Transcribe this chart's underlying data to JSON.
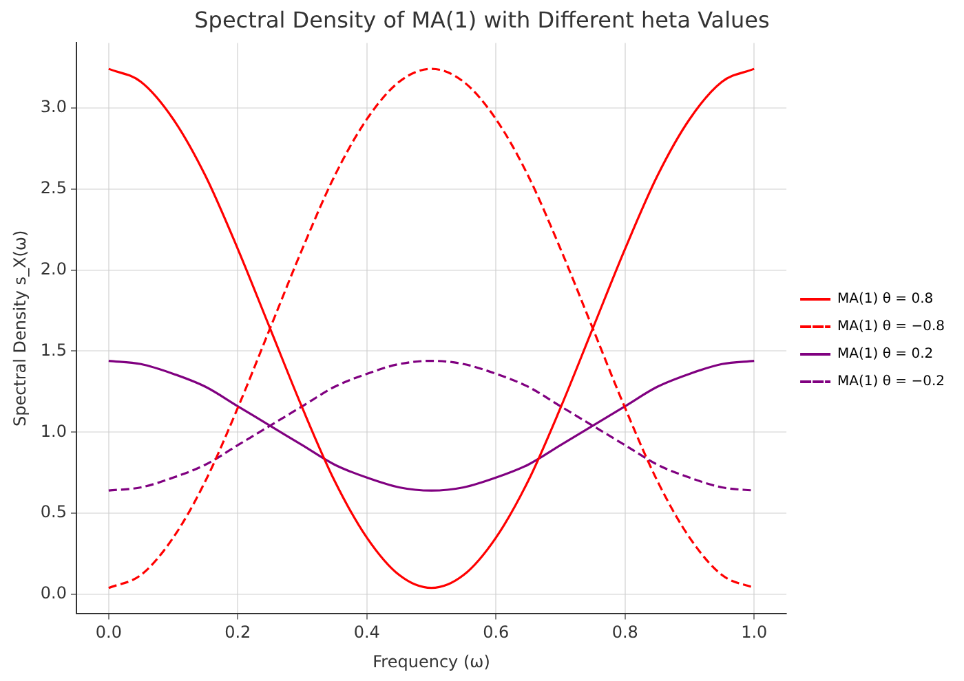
{
  "chart_data": {
    "type": "line",
    "title": "Spectral Density of MA(1) with Different heta Values",
    "xlabel": "Frequency (ω)",
    "ylabel": "Spectral Density s_X(ω)",
    "x": [
      0,
      0.05,
      0.1,
      0.15,
      0.2,
      0.25,
      0.3,
      0.35,
      0.4,
      0.45,
      0.5,
      0.55,
      0.6,
      0.65,
      0.7,
      0.75,
      0.8,
      0.85,
      0.9,
      0.95,
      1
    ],
    "series": [
      {
        "name": "MA(1) θ = 0.8",
        "color": "#ff0000",
        "line_style": "solid",
        "values": [
          3.24,
          3.16,
          2.93,
          2.58,
          2.13,
          1.64,
          1.15,
          0.7,
          0.35,
          0.12,
          0.04,
          0.12,
          0.35,
          0.7,
          1.15,
          1.64,
          2.13,
          2.58,
          2.93,
          3.16,
          3.24
        ]
      },
      {
        "name": "MA(1) θ = −0.8",
        "color": "#ff0000",
        "line_style": "dashed",
        "values": [
          0.04,
          0.12,
          0.35,
          0.7,
          1.15,
          1.64,
          2.13,
          2.58,
          2.93,
          3.16,
          3.24,
          3.16,
          2.93,
          2.58,
          2.13,
          1.64,
          1.15,
          0.7,
          0.35,
          0.12,
          0.04
        ]
      },
      {
        "name": "MA(1) θ = 0.2",
        "color": "#800080",
        "line_style": "solid",
        "values": [
          1.44,
          1.42,
          1.36,
          1.28,
          1.16,
          1.04,
          0.92,
          0.8,
          0.72,
          0.66,
          0.64,
          0.66,
          0.72,
          0.8,
          0.92,
          1.04,
          1.16,
          1.28,
          1.36,
          1.42,
          1.44
        ]
      },
      {
        "name": "MA(1) θ = −0.2",
        "color": "#800080",
        "line_style": "dashed",
        "values": [
          0.64,
          0.66,
          0.72,
          0.8,
          0.92,
          1.04,
          1.16,
          1.28,
          1.36,
          1.42,
          1.44,
          1.42,
          1.36,
          1.28,
          1.16,
          1.04,
          0.92,
          0.8,
          0.72,
          0.66,
          0.64
        ]
      }
    ],
    "xlim": [
      -0.05,
      1.05
    ],
    "xticks": [
      {
        "value": 0,
        "label": "0.0"
      },
      0.2,
      0.4,
      0.6,
      0.8,
      {
        "value": 1,
        "label": "1.0"
      }
    ],
    "ylim": [
      -0.12,
      3.4
    ],
    "yticks": [
      {
        "value": 0,
        "label": "0.0"
      },
      0.5,
      {
        "value": 1,
        "label": "1.0"
      },
      1.5,
      {
        "value": 2,
        "label": "2.0"
      },
      2.5,
      {
        "value": 3,
        "label": "3.0"
      }
    ],
    "grid": true,
    "legend": "right",
    "marker": "none"
  }
}
